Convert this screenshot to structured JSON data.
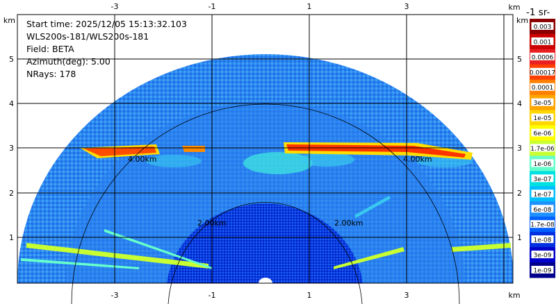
{
  "info": {
    "start_time": "Start time: 2025/12/05 15:13:32.103",
    "instrument": "WLS200s-181/WLS200s-181",
    "field": "Field: BETA",
    "azimuth": "Azimuth(deg): 5.00",
    "nrays": "NRays: 178"
  },
  "axes": {
    "unit_label": "km",
    "x_ticks": [
      "-3",
      "-1",
      "1",
      "3"
    ],
    "y_ticks": [
      "1",
      "2",
      "3",
      "4",
      "5"
    ],
    "range_rings": [
      "2.00km",
      "4.00km"
    ]
  },
  "colorbar": {
    "title": "-1 sr-",
    "labels": [
      "0.003",
      "0.001",
      "0.0006",
      "0.00017",
      "0.0001",
      "3e-05",
      "1e-05",
      "6e-06",
      "1.7e-06",
      "1e-06",
      "3e-07",
      "1e-07",
      "6e-08",
      "1.7e-08",
      "1e-08",
      "3e-09",
      "1e-09"
    ],
    "colors": [
      "#8b0000",
      "#cc0000",
      "#e82020",
      "#ff4000",
      "#ff7f00",
      "#ffa500",
      "#ffd700",
      "#ffff00",
      "#c8ff32",
      "#66ffcc",
      "#00e0e0",
      "#00bfff",
      "#1e90ff",
      "#0060ff",
      "#0030e0",
      "#0000cd",
      "#00008b"
    ]
  }
}
